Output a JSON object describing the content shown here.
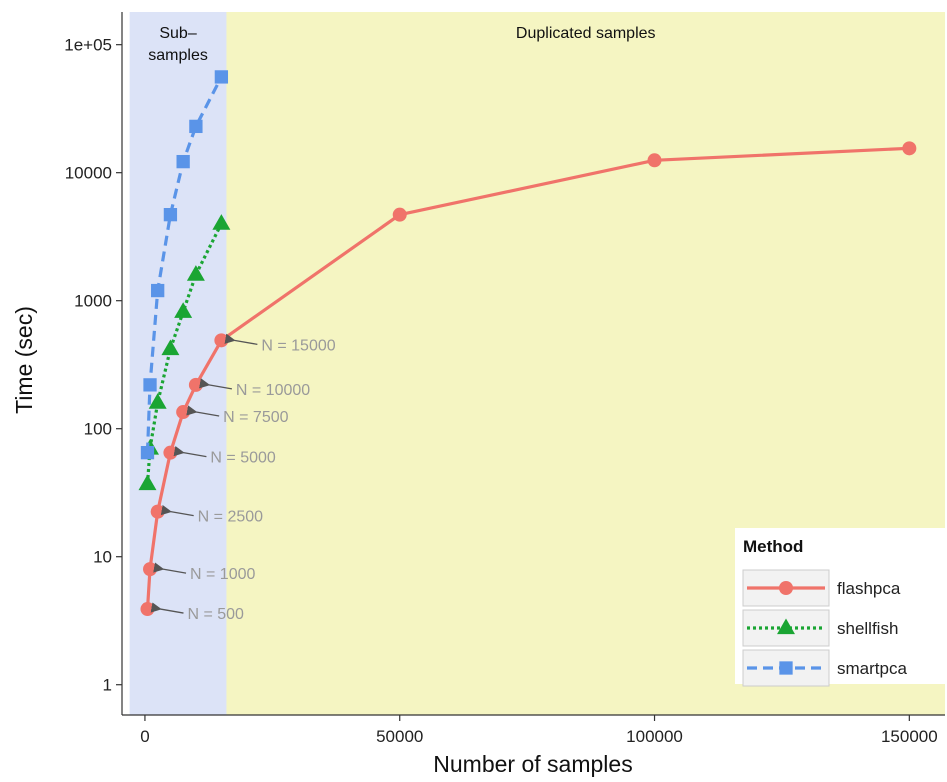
{
  "chart_data": {
    "type": "line",
    "xlabel": "Number of samples",
    "ylabel": "Time (sec)",
    "y_scale": "log",
    "xlim": [
      -4500,
      157000
    ],
    "ylim": [
      0.58,
      180000
    ],
    "x_ticks": [
      {
        "value": 0,
        "label": "0"
      },
      {
        "value": 50000,
        "label": "50000"
      },
      {
        "value": 100000,
        "label": "100000"
      },
      {
        "value": 150000,
        "label": "150000"
      }
    ],
    "y_ticks": [
      {
        "value": 1,
        "label": "1"
      },
      {
        "value": 10,
        "label": "10"
      },
      {
        "value": 100,
        "label": "100"
      },
      {
        "value": 1000,
        "label": "1000"
      },
      {
        "value": 10000,
        "label": "10000"
      },
      {
        "value": 100000,
        "label": "1e+05"
      }
    ],
    "regions": [
      {
        "label_lines": [
          "Sub–",
          "samples"
        ],
        "x_range": [
          -3000,
          16000
        ],
        "color": "#dce3f7"
      },
      {
        "label_lines": [
          "Duplicated samples"
        ],
        "x_range": [
          16000,
          157000
        ],
        "color": "#f5f5c2"
      }
    ],
    "series": [
      {
        "name": "flashpca",
        "color": "#f0736a",
        "marker": "circle",
        "dash": "",
        "points": [
          [
            500,
            3.9
          ],
          [
            1000,
            8
          ],
          [
            2500,
            22.5
          ],
          [
            5000,
            65
          ],
          [
            7500,
            135
          ],
          [
            10000,
            220
          ],
          [
            15000,
            490
          ],
          [
            50000,
            4700
          ],
          [
            100000,
            12500
          ],
          [
            150000,
            15500
          ]
        ]
      },
      {
        "name": "shellfish",
        "color": "#1aa533",
        "marker": "triangle",
        "dash": "3,3",
        "points": [
          [
            500,
            37
          ],
          [
            1000,
            70
          ],
          [
            2500,
            160
          ],
          [
            5000,
            420
          ],
          [
            7500,
            820
          ],
          [
            10000,
            1600
          ],
          [
            15000,
            4000
          ]
        ]
      },
      {
        "name": "smartpca",
        "color": "#5a94e8",
        "marker": "square",
        "dash": "10,6",
        "points": [
          [
            500,
            65
          ],
          [
            1000,
            220
          ],
          [
            2500,
            1200
          ],
          [
            5000,
            4700
          ],
          [
            7500,
            12200
          ],
          [
            10000,
            23000
          ],
          [
            15000,
            56000
          ]
        ]
      }
    ],
    "annotations": [
      {
        "text": "N = 500",
        "x": 500,
        "y": 3.9
      },
      {
        "text": "N = 1000",
        "x": 1000,
        "y": 8
      },
      {
        "text": "N = 2500",
        "x": 2500,
        "y": 22.5
      },
      {
        "text": "N = 5000",
        "x": 5000,
        "y": 65
      },
      {
        "text": "N = 7500",
        "x": 7500,
        "y": 135
      },
      {
        "text": "N = 10000",
        "x": 10000,
        "y": 220
      },
      {
        "text": "N = 15000",
        "x": 15000,
        "y": 490
      }
    ],
    "legend": {
      "title": "Method",
      "position": "bottom-right"
    },
    "grid": false
  }
}
